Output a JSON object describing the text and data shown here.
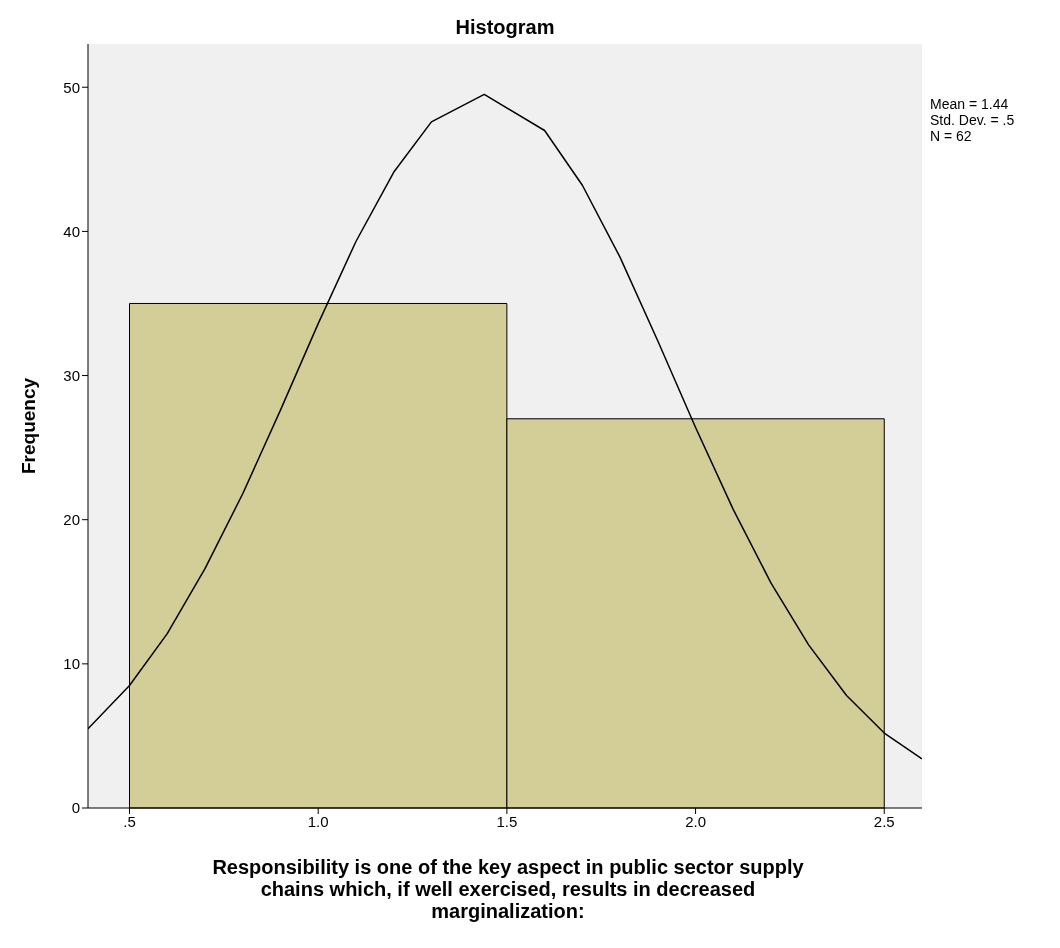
{
  "chart_data": {
    "type": "histogram",
    "title": "Histogram",
    "xlabel": "Responsibility is one of the key aspect in public sector supply chains which, if well exercised, results in decreased marginalization:",
    "ylabel": "Frequency",
    "bins": [
      0.5,
      1.5,
      2.5
    ],
    "values": [
      35,
      27
    ],
    "color": "#d3ce97",
    "series": [
      {
        "type": "line",
        "color": "#000000",
        "x": [
          0.39,
          0.5,
          0.6,
          0.7,
          0.8,
          0.9,
          1.0,
          1.1,
          1.2,
          1.3,
          1.44,
          1.6,
          1.7,
          1.8,
          1.9,
          2.0,
          2.1,
          2.2,
          2.3,
          2.4,
          2.5,
          2.6
        ],
        "values": [
          5.5,
          8.5,
          12.1,
          16.6,
          21.8,
          27.6,
          33.6,
          39.3,
          44.1,
          47.6,
          49.5,
          47.0,
          43.2,
          38.2,
          32.4,
          26.4,
          20.7,
          15.6,
          11.3,
          7.8,
          5.2,
          3.4
        ]
      }
    ],
    "xlim": [
      0.39,
      2.6
    ],
    "xticks": [
      {
        "value": 0.5,
        "label": ".5"
      },
      {
        "value": 1.0,
        "label": "1.0"
      },
      {
        "value": 1.5,
        "label": "1.5"
      },
      {
        "value": 2.0,
        "label": "2.0"
      },
      {
        "value": 2.5,
        "label": "2.5"
      }
    ],
    "ylim": [
      0,
      53
    ],
    "yticks": [
      0,
      10,
      20,
      30,
      40,
      50
    ],
    "annotations": [
      "Mean = 1.44",
      "Std. Dev. = .5",
      "N = 62"
    ],
    "grid": false,
    "marker": "none",
    "line_style": "solid"
  }
}
